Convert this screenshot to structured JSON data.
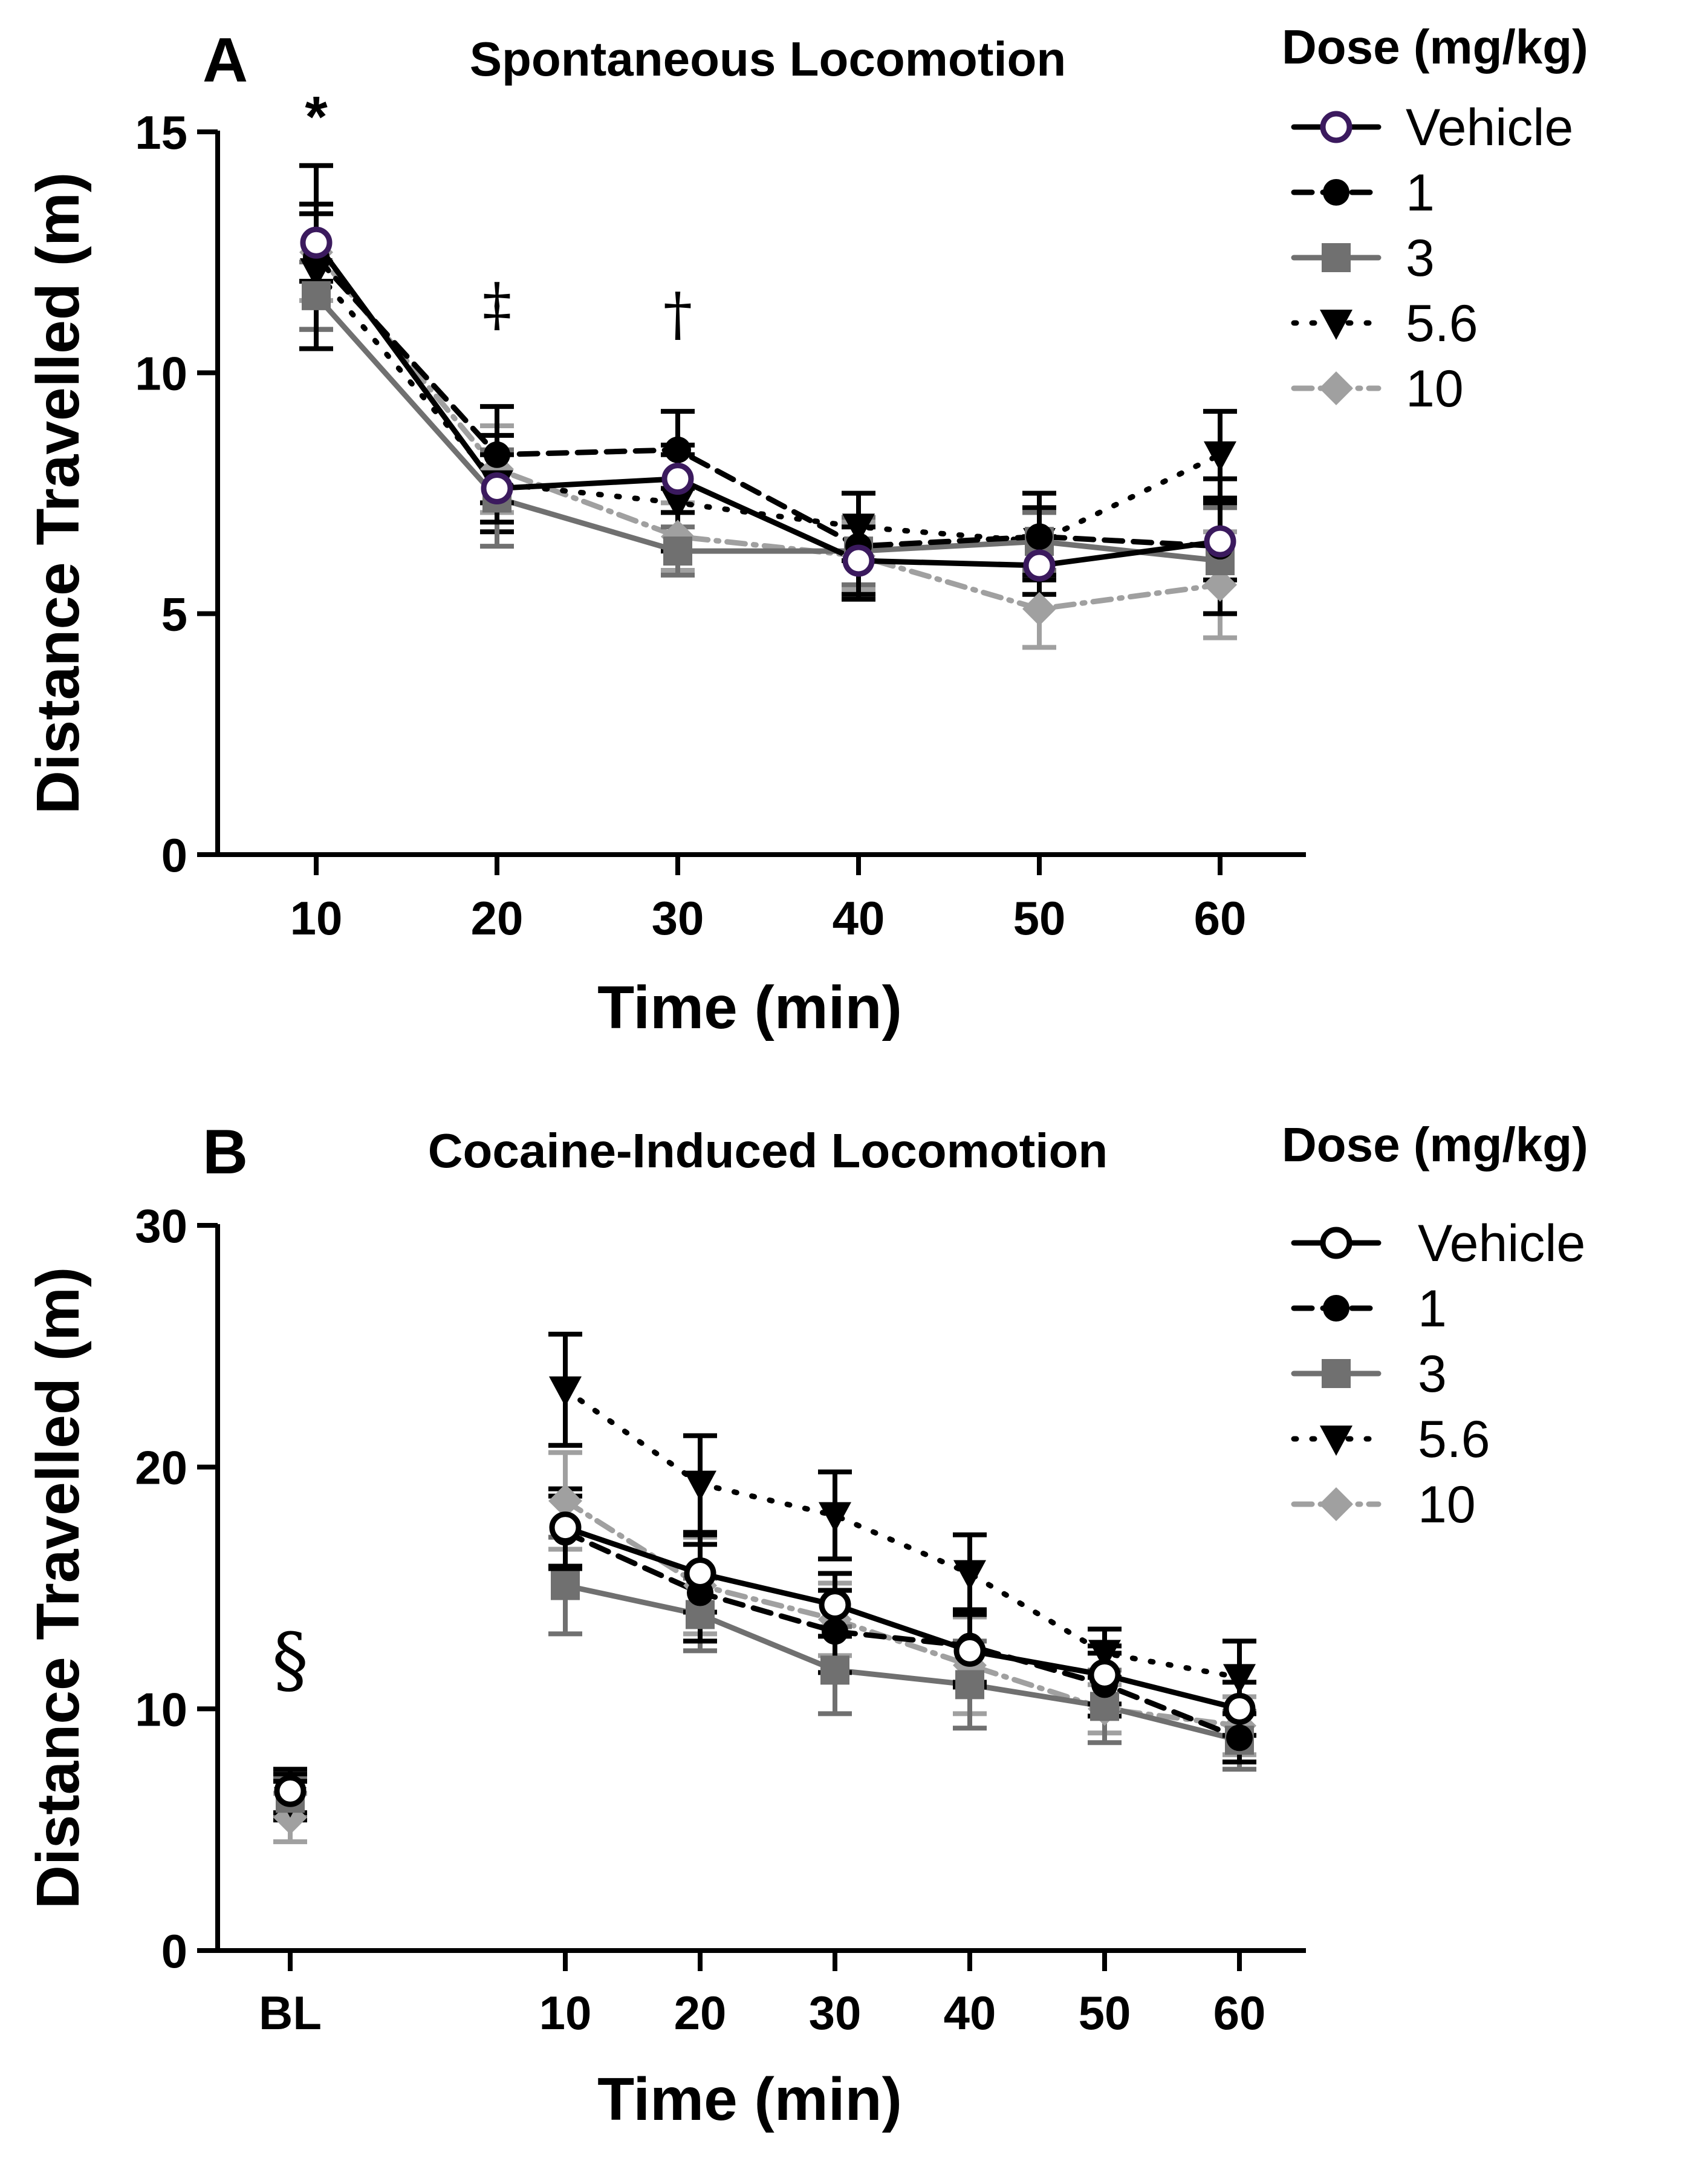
{
  "chart_data": [
    {
      "panel": "A",
      "type": "line",
      "title": "Spontaneous Locomotion",
      "xlabel": "Time (min)",
      "ylabel": "Distance Travelled (m)",
      "x": [
        10,
        20,
        30,
        40,
        50,
        60
      ],
      "xticks": [
        "10",
        "20",
        "30",
        "40",
        "50",
        "60"
      ],
      "ylim": [
        0,
        15
      ],
      "yticks": [
        "0",
        "5",
        "10",
        "15"
      ],
      "legend_title": "Dose (mg/kg)",
      "legend_position": "right",
      "series": [
        {
          "name": "Vehicle",
          "color": "#000000",
          "edge_color": "#3b1a5e",
          "marker": "open-circle",
          "dash": "solid",
          "values": [
            12.7,
            7.6,
            7.8,
            6.1,
            6.0,
            6.5
          ],
          "errors": [
            0.8,
            0.7,
            0.7,
            0.7,
            0.6,
            0.8
          ]
        },
        {
          "name": "1",
          "color": "#000000",
          "marker": "circle",
          "dash": "dashed",
          "values": [
            12.4,
            8.3,
            8.4,
            6.4,
            6.6,
            6.4
          ],
          "errors": [
            1.9,
            1.0,
            0.8,
            1.1,
            0.9,
            1.4
          ]
        },
        {
          "name": "3",
          "color": "#707070",
          "marker": "square",
          "dash": "solid",
          "values": [
            11.6,
            7.4,
            6.3,
            6.3,
            6.5,
            6.1
          ],
          "errors": [
            0.7,
            1.0,
            0.5,
            0.7,
            0.6,
            1.1
          ]
        },
        {
          "name": "5.6",
          "color": "#000000",
          "marker": "triangle-down",
          "dash": "dotted",
          "values": [
            12.1,
            7.7,
            7.3,
            6.8,
            6.5,
            8.3
          ],
          "errors": [
            1.2,
            1.0,
            1.0,
            0.7,
            0.7,
            0.9
          ]
        },
        {
          "name": "10",
          "color": "#a0a0a0",
          "marker": "diamond",
          "dash": "dashdot",
          "values": [
            12.5,
            8.0,
            6.6,
            6.2,
            5.1,
            5.6
          ],
          "errors": [
            1.0,
            0.9,
            0.7,
            0.7,
            0.8,
            1.1
          ]
        }
      ],
      "annotations": [
        {
          "text": "*",
          "x": 10,
          "y": 14.9
        },
        {
          "text": "‡",
          "x": 20,
          "y": 11.0
        },
        {
          "text": "†",
          "x": 30,
          "y": 10.8
        }
      ]
    },
    {
      "panel": "B",
      "type": "line",
      "title": "Cocaine-Induced Locomotion",
      "xlabel": "Time (min)",
      "ylabel": "Distance Travelled (m)",
      "x": [
        10,
        20,
        30,
        40,
        50,
        60
      ],
      "xticks": [
        "BL",
        "10",
        "20",
        "30",
        "40",
        "50",
        "60"
      ],
      "baseline_label": "BL",
      "ylim": [
        0,
        30
      ],
      "yticks": [
        "0",
        "10",
        "20",
        "30"
      ],
      "legend_title": "Dose (mg/kg)",
      "legend_position": "right",
      "baseline": {
        "values": [
          6.6,
          6.5,
          6.3,
          6.2,
          5.5
        ],
        "errors": [
          0.9,
          0.8,
          0.8,
          0.8,
          1.0
        ]
      },
      "series": [
        {
          "name": "Vehicle",
          "color": "#000000",
          "marker": "open-circle",
          "dash": "solid",
          "values": [
            17.5,
            15.6,
            14.3,
            12.4,
            11.4,
            10.0
          ],
          "errors": [
            1.6,
            1.6,
            1.3,
            1.5,
            1.2,
            1.1
          ]
        },
        {
          "name": "1",
          "color": "#000000",
          "marker": "circle",
          "dash": "dashed",
          "values": [
            17.3,
            14.8,
            13.2,
            12.6,
            11.0,
            8.8
          ],
          "errors": [
            1.5,
            2.0,
            1.7,
            1.5,
            1.3,
            1.0
          ]
        },
        {
          "name": "3",
          "color": "#707070",
          "marker": "square",
          "dash": "solid",
          "values": [
            15.1,
            13.9,
            11.6,
            11.0,
            10.1,
            8.7
          ],
          "errors": [
            2.0,
            1.5,
            1.8,
            1.8,
            1.5,
            1.2
          ]
        },
        {
          "name": "5.6",
          "color": "#000000",
          "marker": "triangle-down",
          "dash": "dotted",
          "values": [
            23.2,
            19.3,
            18.0,
            15.6,
            12.3,
            11.3
          ],
          "errors": [
            2.3,
            2.0,
            1.8,
            1.6,
            1.0,
            1.5
          ]
        },
        {
          "name": "10",
          "color": "#a0a0a0",
          "marker": "diamond",
          "dash": "dashdot",
          "values": [
            18.6,
            15.1,
            13.7,
            11.8,
            10.0,
            9.3
          ],
          "errors": [
            2.0,
            2.0,
            1.5,
            2.0,
            1.0,
            1.2
          ]
        }
      ],
      "annotations": [
        {
          "text": "§",
          "x": "BL",
          "y": 11.0
        }
      ]
    }
  ]
}
